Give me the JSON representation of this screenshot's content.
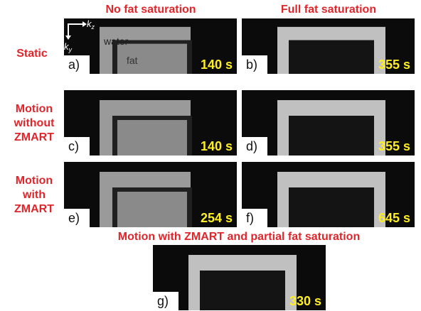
{
  "column_headers": [
    "No fat saturation",
    "Full fat saturation"
  ],
  "row_labels": [
    [
      "Static"
    ],
    [
      "Motion",
      "without",
      "ZMART"
    ],
    [
      "Motion",
      "with",
      "ZMART"
    ]
  ],
  "panels": [
    {
      "letter": "a)",
      "time": "140 s"
    },
    {
      "letter": "b)",
      "time": "355 s"
    },
    {
      "letter": "c)",
      "time": "140 s"
    },
    {
      "letter": "d)",
      "time": "355 s"
    },
    {
      "letter": "e)",
      "time": "254 s"
    },
    {
      "letter": "f)",
      "time": "645 s"
    },
    {
      "letter": "g)",
      "time": "330 s"
    }
  ],
  "bottom_title": "Motion with ZMART and partial fat saturation",
  "annotations": {
    "water": "water",
    "fat": "fat"
  },
  "axes": {
    "horizontal": {
      "symbol": "k",
      "subscript": "z"
    },
    "vertical": {
      "symbol": "k",
      "subscript": "y"
    }
  }
}
